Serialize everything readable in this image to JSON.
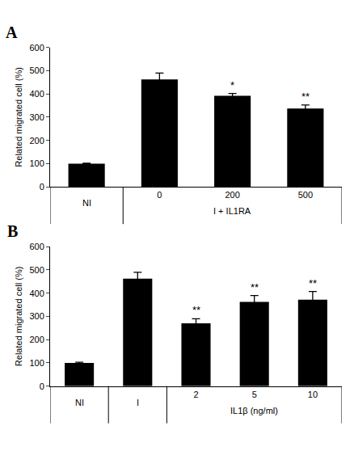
{
  "chart_data": [
    {
      "type": "bar",
      "title": "A",
      "y_label": "Related migrated cell (%)",
      "categories": [
        null,
        "0",
        "200",
        "500"
      ],
      "groups": [
        "NI",
        "I + IL1RA",
        "I + IL1RA",
        "I + IL1RA"
      ],
      "values": [
        100,
        462,
        392,
        337
      ],
      "errors": [
        2,
        28,
        10,
        15
      ],
      "annotations": [
        null,
        null,
        "*",
        "**"
      ],
      "color": "#000000",
      "ylim": [
        0,
        600
      ],
      "yticks": [
        0,
        100,
        200,
        300,
        400,
        500,
        600
      ],
      "grid": false
    },
    {
      "type": "bar",
      "title": "B",
      "y_label": "Related migrated cell (%)",
      "categories": [
        null,
        null,
        "2",
        "5",
        "10"
      ],
      "groups": [
        "NI",
        "I",
        "IL1β (ng/ml)",
        "IL1β (ng/ml)",
        "IL1β (ng/ml)"
      ],
      "values": [
        100,
        462,
        270,
        362,
        372
      ],
      "errors": [
        3,
        28,
        20,
        28,
        35
      ],
      "annotations": [
        null,
        null,
        "**",
        "**",
        "**"
      ],
      "color": "#000000",
      "ylim": [
        0,
        600
      ],
      "yticks": [
        0,
        100,
        200,
        300,
        400,
        500,
        600
      ],
      "grid": false
    }
  ]
}
